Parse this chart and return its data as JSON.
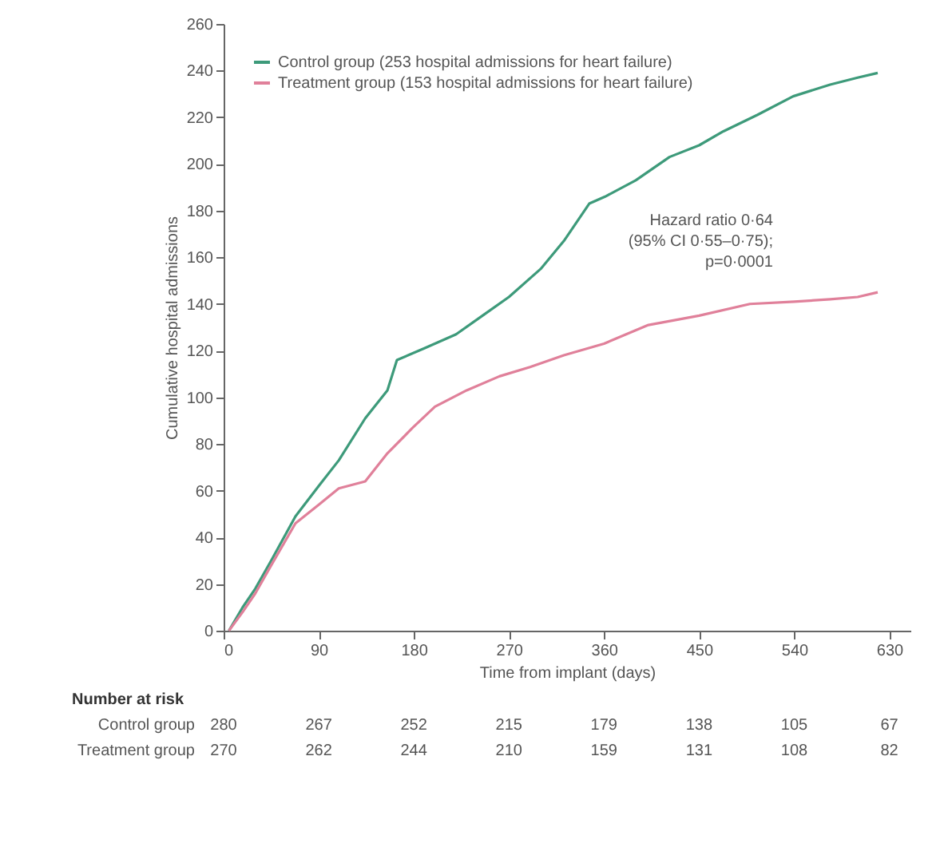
{
  "chart_data": {
    "type": "line",
    "xlabel": "Time from implant (days)",
    "ylabel": "Cumulative hospital admissions",
    "xlim": [
      0,
      650
    ],
    "xticks": [
      0,
      90,
      180,
      270,
      360,
      450,
      540,
      630
    ],
    "ylim": [
      0,
      260
    ],
    "yticks": [
      0,
      20,
      40,
      60,
      80,
      100,
      120,
      140,
      160,
      180,
      200,
      220,
      240,
      260
    ],
    "legend": "top left",
    "grid": false,
    "line_style": "solid",
    "series": [
      {
        "name": "Control group (253 hospital admissions for heart failure)",
        "color": "#3d9a7a",
        "x": [
          5,
          18,
          30,
          45,
          68,
          90,
          109,
          134,
          155,
          164,
          190,
          220,
          245,
          270,
          300,
          322,
          346,
          361,
          390,
          422,
          450,
          473,
          505,
          539,
          574,
          600,
          619
        ],
        "values": [
          0,
          10,
          18,
          30,
          49,
          62,
          73,
          91,
          103,
          116,
          121,
          127,
          135,
          143,
          155,
          167,
          183,
          186,
          193,
          203,
          208,
          214,
          221,
          229,
          234,
          237,
          239
        ]
      },
      {
        "name": "Treatment group (153 hospital admissions for heart failure)",
        "color": "#e0809a",
        "x": [
          5,
          18,
          30,
          45,
          68,
          90,
          109,
          134,
          155,
          179,
          200,
          230,
          261,
          290,
          322,
          360,
          402,
          450,
          498,
          540,
          574,
          600,
          619
        ],
        "values": [
          0,
          8,
          16,
          28,
          46,
          54,
          61,
          64,
          76,
          87,
          96,
          103,
          109,
          113,
          118,
          123,
          131,
          135,
          140,
          141,
          142,
          143,
          145
        ]
      }
    ],
    "annotations": [
      "Hazard ratio 0·64\n(95% CI 0·55–0·75);\np=0·0001",
      "Number at risk",
      "Control group",
      "280",
      "267",
      "252",
      "215",
      "179",
      "138",
      "105",
      "67",
      "Treatment group",
      "270",
      "262",
      "244",
      "210",
      "159",
      "131",
      "108",
      "82"
    ]
  }
}
